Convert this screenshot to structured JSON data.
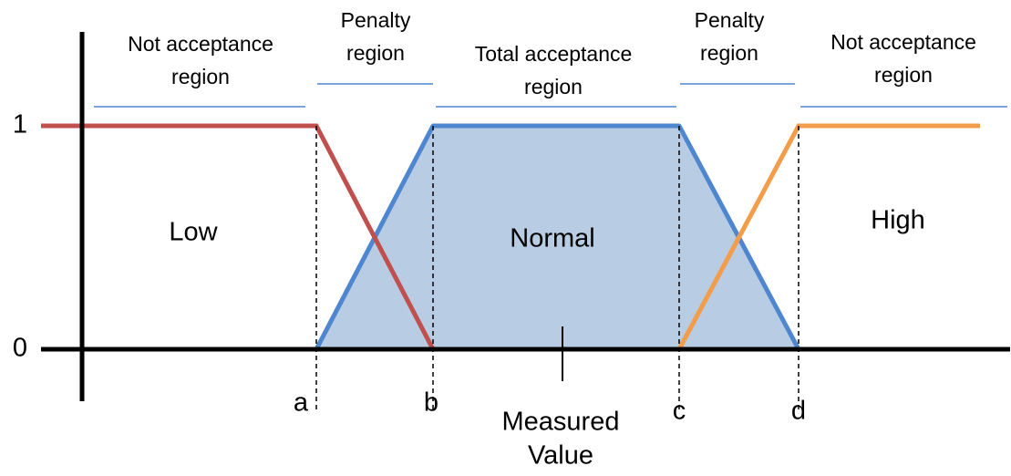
{
  "regions": [
    {
      "lines": [
        "Not acceptance",
        "region"
      ]
    },
    {
      "lines": [
        "Penalty",
        "region"
      ]
    },
    {
      "lines": [
        "Total acceptance",
        "region"
      ]
    },
    {
      "lines": [
        "Penalty",
        "region"
      ]
    },
    {
      "lines": [
        "Not acceptance",
        "region"
      ]
    }
  ],
  "y_labels": [
    "1",
    "0"
  ],
  "sets": [
    "Low",
    "Normal",
    "High"
  ],
  "points": [
    "a",
    "b",
    "c",
    "d"
  ],
  "axis_label": {
    "lines": [
      "Measured",
      "Value"
    ]
  }
}
